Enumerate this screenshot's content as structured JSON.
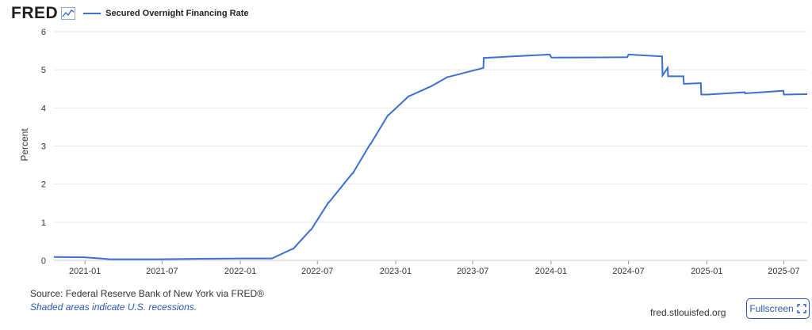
{
  "header": {
    "logo_text": "FRED",
    "logo_icon": "line-graph-icon"
  },
  "chart_data": {
    "type": "line",
    "title": "",
    "xlabel": "",
    "ylabel": "Percent",
    "ylim": [
      0,
      6
    ],
    "yticks": [
      0,
      1,
      2,
      3,
      4,
      5,
      6
    ],
    "xlim": [
      "2020-10-20",
      "2025-08-25"
    ],
    "xticks": [
      "2021-01",
      "2021-07",
      "2022-01",
      "2022-07",
      "2023-01",
      "2023-07",
      "2024-01",
      "2024-07",
      "2025-01",
      "2025-07"
    ],
    "grid": true,
    "legend_position": "top-left",
    "series": [
      {
        "name": "Secured Overnight Financing Rate",
        "color": "#3b6fd1",
        "x": [
          "2020-10-20",
          "2020-12-31",
          "2021-03-01",
          "2021-06-16",
          "2021-12-31",
          "2022-03-16",
          "2022-05-03",
          "2022-05-05",
          "2022-06-15",
          "2022-06-16",
          "2022-07-27",
          "2022-07-28",
          "2022-09-21",
          "2022-09-22",
          "2022-11-02",
          "2022-11-03",
          "2022-12-14",
          "2022-12-15",
          "2023-02-01",
          "2023-02-02",
          "2023-03-22",
          "2023-03-23",
          "2023-05-03",
          "2023-05-04",
          "2023-07-26",
          "2023-07-27",
          "2023-10-02",
          "2023-12-29",
          "2024-01-02",
          "2024-06-28",
          "2024-07-01",
          "2024-09-18",
          "2024-09-19",
          "2024-10-01",
          "2024-10-02",
          "2024-11-07",
          "2024-11-08",
          "2024-12-18",
          "2024-12-19",
          "2025-01-02",
          "2025-03-31",
          "2025-04-01",
          "2025-06-30",
          "2025-07-01",
          "2025-08-25"
        ],
        "y": [
          0.09,
          0.08,
          0.03,
          0.03,
          0.05,
          0.05,
          0.3,
          0.3,
          0.8,
          0.8,
          1.52,
          1.52,
          2.28,
          2.28,
          3.05,
          3.05,
          3.81,
          3.81,
          4.31,
          4.31,
          4.55,
          4.55,
          4.81,
          4.81,
          5.05,
          5.31,
          5.35,
          5.4,
          5.32,
          5.33,
          5.4,
          5.35,
          4.85,
          5.05,
          4.83,
          4.83,
          4.63,
          4.65,
          4.35,
          4.35,
          4.41,
          4.38,
          4.45,
          4.35,
          4.36
        ]
      }
    ]
  },
  "footer": {
    "source": "Source: Federal Reserve Bank of New York via FRED®",
    "note": "Shaded areas indicate U.S. recessions.",
    "url": "fred.stlouisfed.org",
    "fullscreen_label": "Fullscreen",
    "fullscreen_icon": "expand-corners-icon"
  },
  "colors": {
    "series": "#3b6fd1",
    "grid": "#e6e6e6",
    "axis_text": "#333333",
    "link": "#2a56b8"
  }
}
